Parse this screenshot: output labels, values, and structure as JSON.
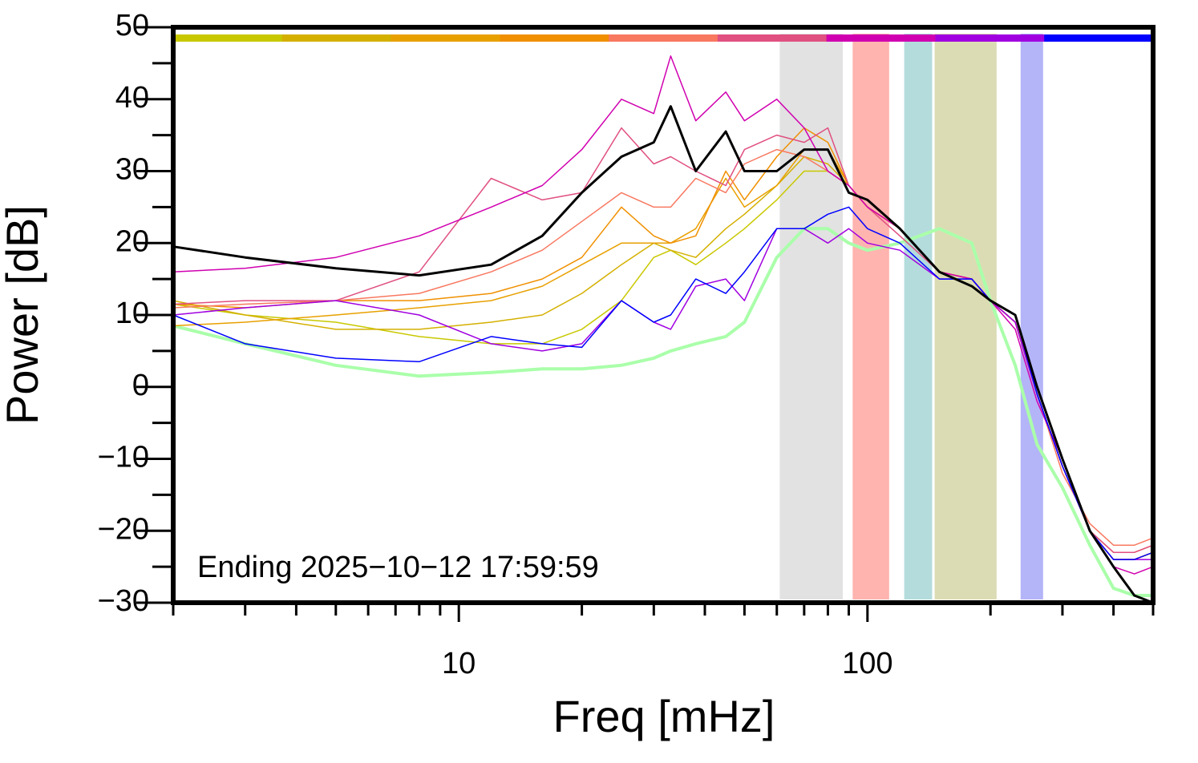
{
  "chart_data": {
    "type": "line",
    "xlabel": "Freq [mHz]",
    "ylabel": "Power [dB]",
    "annotation": "Ending 2025−10−12 17:59:59",
    "log_x": true,
    "xlim": [
      2,
      500
    ],
    "xticks": [
      10,
      100
    ],
    "xminor": [
      2,
      3,
      4,
      5,
      6,
      7,
      8,
      9,
      20,
      30,
      40,
      50,
      60,
      70,
      80,
      90,
      200,
      300,
      400,
      500
    ],
    "ylim": [
      -30,
      50
    ],
    "yticks": [
      {
        "value": -30,
        "label": "−30"
      },
      {
        "value": -20,
        "label": "−20"
      },
      {
        "value": -10,
        "label": "−10"
      },
      0,
      10,
      20,
      30,
      40,
      50
    ],
    "yminor": [
      -25,
      -15,
      -5,
      5,
      15,
      25,
      35,
      45
    ],
    "bands": [
      {
        "range": [
          61,
          87
        ],
        "color": "#e2e2e2"
      },
      {
        "range": [
          92,
          113
        ],
        "color": "#ffb4b0"
      },
      {
        "range": [
          123,
          144
        ],
        "color": "#b4dcdc"
      },
      {
        "range": [
          146,
          207
        ],
        "color": "#dcdcb4"
      },
      {
        "range": [
          237,
          269
        ],
        "color": "#b4b4f8"
      }
    ],
    "x": [
      2,
      3,
      5,
      8,
      12,
      16,
      20,
      25,
      30,
      33,
      38,
      45,
      50,
      60,
      70,
      80,
      90,
      100,
      120,
      150,
      180,
      200,
      230,
      260,
      300,
      350,
      400,
      450,
      500
    ],
    "series": [
      {
        "color": "#aaffaa",
        "width": 4,
        "values": [
          8.5,
          6,
          3,
          1.5,
          2,
          2.5,
          2.5,
          3,
          4,
          5,
          6,
          7,
          9,
          18,
          22,
          22,
          20,
          19,
          20,
          22,
          20,
          12,
          3,
          -8,
          -14,
          -22,
          -28,
          -29,
          -29
        ]
      },
      {
        "color": "#c8c800",
        "width": 1.5,
        "values": [
          11.5,
          10,
          9,
          7,
          6,
          6,
          8,
          12,
          18,
          19,
          17,
          20,
          22,
          26,
          30,
          30,
          28,
          25,
          22,
          16,
          15,
          12,
          9,
          -1,
          -11,
          -20,
          -24,
          -24,
          -23
        ]
      },
      {
        "color": "#d4b000",
        "width": 1.5,
        "values": [
          12,
          10,
          8,
          8,
          9,
          10,
          13,
          17,
          20,
          19,
          18,
          22,
          24,
          28,
          32,
          31,
          28,
          25,
          22,
          16,
          15,
          12,
          9,
          -1,
          -11,
          -20,
          -24,
          -24,
          -23
        ]
      },
      {
        "color": "#e8a000",
        "width": 1.5,
        "values": [
          8.5,
          9,
          10,
          11,
          12,
          14,
          17,
          20,
          20,
          20,
          22,
          29,
          25,
          28,
          33,
          33,
          28,
          25,
          22,
          16,
          15,
          12,
          9,
          -1,
          -11,
          -20,
          -24,
          -24,
          -23
        ]
      },
      {
        "color": "#f09000",
        "width": 1.5,
        "values": [
          11.5,
          11,
          12,
          12,
          13,
          15,
          18,
          25,
          21,
          20,
          21,
          30,
          26,
          32,
          36,
          34,
          28,
          25,
          22,
          16,
          15,
          12,
          9,
          -1,
          -11,
          -20,
          -23,
          -23,
          -22
        ]
      },
      {
        "color": "#f87860",
        "width": 1.5,
        "values": [
          11,
          11.5,
          12,
          13,
          16,
          19,
          23,
          27,
          25,
          25,
          29,
          27,
          31,
          33,
          32,
          30,
          28,
          25,
          22,
          16,
          15,
          12,
          9,
          -1,
          -12,
          -19,
          -22,
          -22,
          -21
        ]
      },
      {
        "color": "#e05080",
        "width": 1.5,
        "values": [
          11.5,
          12,
          12,
          16,
          29,
          26,
          27,
          36,
          31,
          32,
          30,
          28,
          33,
          35,
          34,
          36,
          28,
          25,
          21,
          16,
          15,
          12,
          9,
          -1,
          -11,
          -20,
          -23,
          -23,
          -22
        ]
      },
      {
        "color": "#d000b0",
        "width": 1.5,
        "values": [
          16,
          16.5,
          18,
          21,
          25,
          28,
          33,
          40,
          38,
          46,
          37,
          41,
          37,
          40,
          36,
          30,
          28,
          25,
          22,
          16,
          15,
          12,
          8,
          -2,
          -10,
          -20,
          -25,
          -26,
          -25
        ]
      },
      {
        "color": "#a000e0",
        "width": 1.5,
        "values": [
          10,
          11,
          12,
          10,
          6,
          5,
          6,
          12,
          9,
          8,
          14,
          15,
          12,
          22,
          22,
          20,
          22,
          20,
          19,
          15,
          15,
          12,
          9,
          -1,
          -11,
          -20,
          -24,
          -24,
          -24
        ]
      },
      {
        "color": "#0000ff",
        "width": 1.5,
        "values": [
          10,
          6,
          4,
          3.5,
          7,
          6,
          5.5,
          12,
          9,
          10,
          15,
          13,
          16,
          22,
          22,
          24,
          25,
          22,
          20,
          15,
          15,
          12,
          10,
          -1,
          -11,
          -20,
          -24,
          -24,
          -23
        ]
      },
      {
        "color": "#000000",
        "width": 3,
        "values": [
          19.5,
          18,
          16.5,
          15.5,
          17,
          21,
          27,
          32,
          34,
          39,
          30,
          35.5,
          30,
          30,
          33,
          33,
          27,
          26,
          22,
          16,
          14,
          12,
          10,
          0,
          -10,
          -20,
          -25,
          -29,
          -30
        ]
      }
    ],
    "topbar": true
  }
}
